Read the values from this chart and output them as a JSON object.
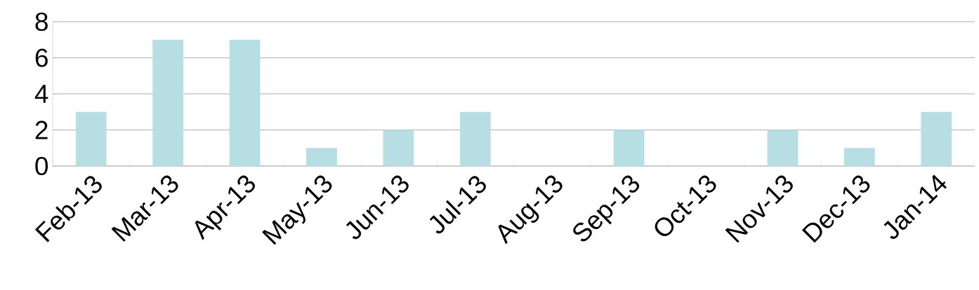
{
  "chart_data": {
    "type": "bar",
    "categories": [
      "Feb-13",
      "Mar-13",
      "Apr-13",
      "May-13",
      "Jun-13",
      "Jul-13",
      "Aug-13",
      "Sep-13",
      "Oct-13",
      "Nov-13",
      "Dec-13",
      "Jan-14"
    ],
    "values": [
      3,
      7,
      7,
      1,
      2,
      3,
      0,
      2,
      0,
      2,
      1,
      3
    ],
    "color": "#b7dfe3",
    "ylim": [
      0,
      8
    ],
    "yticks": [
      0,
      2,
      4,
      6,
      8
    ],
    "grid": "y"
  }
}
